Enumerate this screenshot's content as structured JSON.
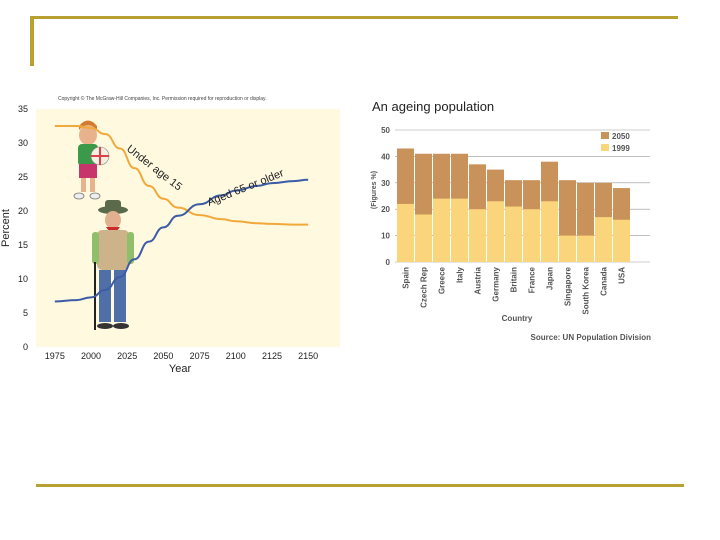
{
  "copyright": "Copyright © The McGraw-Hill Companies, Inc. Permission required for reproduction or display.",
  "chart_data": [
    {
      "type": "line",
      "xlabel": "Year",
      "ylabel": "Percent",
      "x_ticks": [
        "1975",
        "2000",
        "2025",
        "2050",
        "2075",
        "2100",
        "2125",
        "2150"
      ],
      "y_ticks": [
        "0",
        "5",
        "10",
        "15",
        "20",
        "25",
        "30",
        "35"
      ],
      "xlim": [
        1962,
        2172
      ],
      "ylim": [
        0,
        35
      ],
      "color": "#f2a93b",
      "series": [
        {
          "name": "Under age 15",
          "color": "#f2a93b",
          "x": [
            1975,
            1990,
            2000,
            2010,
            2020,
            2030,
            2040,
            2050,
            2060,
            2075,
            2090,
            2100,
            2115,
            2125,
            2140,
            2150
          ],
          "y": [
            32.5,
            32.5,
            32.2,
            31.3,
            29.2,
            26.3,
            23.7,
            21.8,
            20.5,
            19.4,
            18.8,
            18.5,
            18.2,
            18.1,
            18.0,
            18.0
          ]
        },
        {
          "name": "Aged 65 or older",
          "color": "#3d5ca8",
          "x": [
            1975,
            1990,
            2000,
            2010,
            2020,
            2030,
            2040,
            2050,
            2060,
            2075,
            2090,
            2100,
            2115,
            2125,
            2140,
            2150
          ],
          "y": [
            6.7,
            6.9,
            7.3,
            8.4,
            10.3,
            12.9,
            15.5,
            17.6,
            19.3,
            21.0,
            22.3,
            23.0,
            23.7,
            24.1,
            24.4,
            24.6
          ]
        }
      ]
    },
    {
      "type": "bar",
      "title": "An ageing population",
      "ylabel": "(Figures %)",
      "xlabel": "Country",
      "source": "Source: UN Population Division",
      "ylim": [
        0,
        50
      ],
      "y_ticks": [
        "0",
        "10",
        "20",
        "30",
        "40",
        "50"
      ],
      "legend_position": "top-right",
      "categories": [
        "Spain",
        "Czech Rep",
        "Greece",
        "Italy",
        "Austria",
        "Germany",
        "Britain",
        "France",
        "Japan",
        "Singapore",
        "South Korea",
        "Canada",
        "USA"
      ],
      "series": [
        {
          "name": "2050",
          "color": "#c9925a",
          "values": [
            43,
            41,
            41,
            41,
            37,
            35,
            31,
            31,
            38,
            31,
            30,
            30,
            28
          ]
        },
        {
          "name": "1999",
          "color": "#fad57b",
          "values": [
            22,
            18,
            24,
            24,
            20,
            23,
            21,
            20,
            23,
            10,
            10,
            17,
            16
          ]
        }
      ]
    }
  ]
}
